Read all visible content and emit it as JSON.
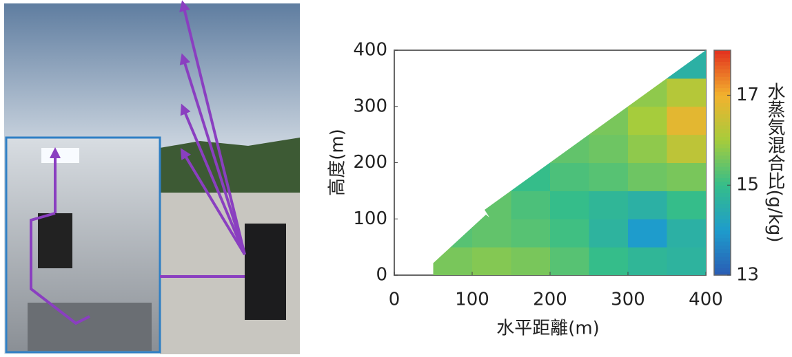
{
  "chart_data": {
    "type": "heatmap",
    "xlabel": "水平距離(m)",
    "ylabel": "高度(m)",
    "colorbar_label": "水蒸気混合比(g/kg)",
    "xlim": [
      0,
      400
    ],
    "ylim": [
      0,
      400
    ],
    "xticks": [
      0,
      100,
      200,
      300,
      400
    ],
    "yticks": [
      0,
      100,
      200,
      300,
      400
    ],
    "x_bins": [
      0,
      50,
      100,
      150,
      200,
      250,
      300,
      350,
      400
    ],
    "y_bins": [
      0,
      50,
      100,
      150,
      200,
      250,
      300,
      350,
      400
    ],
    "values": [
      [
        null,
        15.6,
        15.7,
        15.6,
        15.3,
        15.0,
        14.8,
        14.7
      ],
      [
        null,
        15.3,
        15.4,
        15.3,
        15.1,
        14.7,
        14.0,
        14.6
      ],
      [
        null,
        null,
        15.4,
        15.2,
        15.0,
        14.8,
        14.6,
        15.0
      ],
      [
        null,
        null,
        null,
        15.0,
        15.2,
        15.3,
        15.5,
        15.6
      ],
      [
        null,
        null,
        null,
        null,
        15.4,
        15.5,
        15.8,
        16.3
      ],
      [
        null,
        null,
        null,
        null,
        null,
        15.6,
        16.0,
        16.8
      ],
      [
        null,
        null,
        null,
        null,
        null,
        null,
        15.8,
        16.2
      ],
      [
        null,
        null,
        null,
        null,
        null,
        null,
        null,
        14.6
      ]
    ],
    "clim": [
      13,
      18
    ],
    "cticks": [
      13,
      15,
      17
    ],
    "colormap": [
      "#2a5cb4",
      "#1e9ccc",
      "#35bd8a",
      "#a6cc3c",
      "#f2b22e",
      "#e2301e"
    ]
  }
}
